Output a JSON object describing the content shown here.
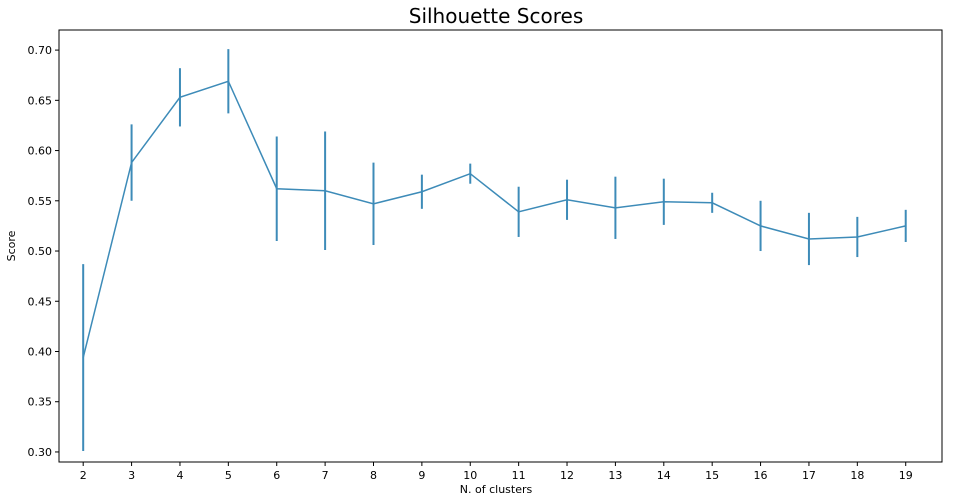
{
  "chart_data": {
    "type": "line",
    "title": "Silhouette Scores",
    "xlabel": "N. of clusters",
    "ylabel": "Score",
    "x": [
      2,
      3,
      4,
      5,
      6,
      7,
      8,
      9,
      10,
      11,
      12,
      13,
      14,
      15,
      16,
      17,
      18,
      19
    ],
    "xlim": [
      1.5,
      19.75
    ],
    "ylim": [
      0.29,
      0.72
    ],
    "yticks": [
      "0.30",
      "0.35",
      "0.40",
      "0.45",
      "0.50",
      "0.55",
      "0.60",
      "0.65",
      "0.70"
    ],
    "grid": false,
    "series": [
      {
        "values": [
          0.394,
          0.588,
          0.653,
          0.669,
          0.562,
          0.56,
          0.547,
          0.559,
          0.577,
          0.539,
          0.551,
          0.543,
          0.549,
          0.548,
          0.525,
          0.512,
          0.514,
          0.525
        ],
        "errors": [
          0.093,
          0.038,
          0.029,
          0.032,
          0.052,
          0.059,
          0.041,
          0.017,
          0.01,
          0.025,
          0.02,
          0.031,
          0.023,
          0.01,
          0.025,
          0.026,
          0.02,
          0.016
        ],
        "color": "#3d8bb8"
      }
    ]
  }
}
